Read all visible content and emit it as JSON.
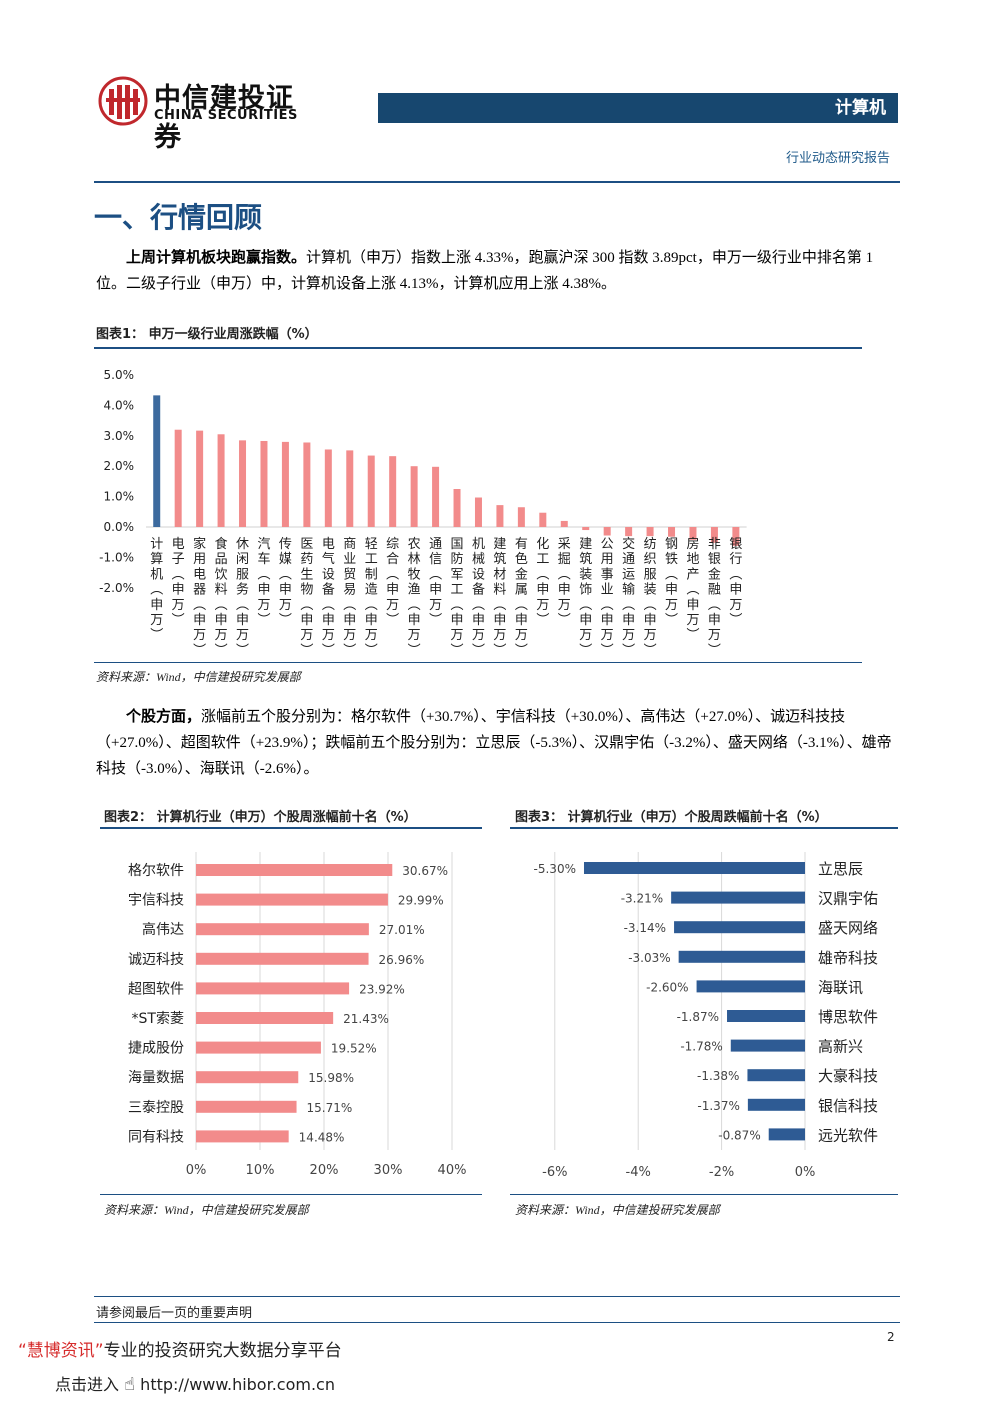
{
  "header": {
    "logo_cn": "中信建投证券",
    "logo_en": "CHINA SECURITIES",
    "sector": "计算机",
    "report_type": "行业动态研究报告"
  },
  "section": {
    "title": "一、行情回顾"
  },
  "para1": {
    "bold": "上周计算机板块跑赢指数。",
    "text": "计算机（申万）指数上涨 4.33%，跑赢沪深 300 指数 3.89pct，申万一级行业中排名第 1 位。二级子行业（申万）中，计算机设备上涨 4.13%，计算机应用上涨 4.38%。"
  },
  "para2": {
    "bold": "个股方面，",
    "text": "涨幅前五个股分别为：格尔软件（+30.7%）、宇信科技（+30.0%）、高伟达（+27.0%）、诚迈科技技（+27.0%）、超图软件（+23.9%）；跌幅前五个股分别为：立思辰（-5.3%）、汉鼎宇佑（-3.2%）、盛天网络（-3.1%）、雄帝科技（-3.0%）、海联讯（-2.6%）。"
  },
  "figure1": {
    "title": "图表1：  申万一级行业周涨跌幅（%）",
    "source": "资料来源：Wind，中信建投研究发展部"
  },
  "figure2": {
    "title": "图表2：  计算机行业（申万）个股周涨幅前十名（%）",
    "source": "资料来源：Wind，中信建投研究发展部"
  },
  "figure3": {
    "title": "图表3：  计算机行业（申万）个股周跌幅前十名（%）",
    "source": "资料来源：Wind，中信建投研究发展部"
  },
  "footer": {
    "note": "请参阅最后一页的重要声明",
    "page": "2",
    "ad_line1_red": "“慧博资讯”",
    "ad_line1": "专业的投资研究大数据分享平台",
    "ad_line2": "点击进入",
    "ad_url": "http://www.hibor.com.cn"
  },
  "colors": {
    "highlight": "#3c6a9e",
    "positive": "#f28b8b",
    "negative": "#2e5b94",
    "brand_bar": "#17476f",
    "brand_red": "#c0282d"
  },
  "icons": {
    "logo": "china-securities-logo-icon",
    "hand": "hand-pointer-icon"
  },
  "chart_data": [
    {
      "type": "bar",
      "title": "",
      "categories": [
        "计算机(申万)",
        "电子(申万)",
        "家用电器(申万)",
        "食品饮料(申万)",
        "休闲服务(申万)",
        "汽车(申万)",
        "传媒(申万)",
        "医药生物(申万)",
        "电气设备(申万)",
        "商业贸易(申万)",
        "轻工制造(申万)",
        "综合(申万)",
        "农林牧渔(申万)",
        "通信(申万)",
        "国防军工(申万)",
        "机械设备(申万)",
        "建筑材料(申万)",
        "有色金属(申万)",
        "化工(申万)",
        "采掘(申万)",
        "建筑装饰(申万)",
        "公用事业(申万)",
        "交通运输(申万)",
        "纺织服装(申万)",
        "钢铁(申万)",
        "房地产(申万)",
        "非银金融(申万)",
        "银行(申万)"
      ],
      "values": [
        4.33,
        3.2,
        3.17,
        3.05,
        2.85,
        2.83,
        2.8,
        2.78,
        2.55,
        2.52,
        2.35,
        2.33,
        2.0,
        1.98,
        1.25,
        0.97,
        0.72,
        0.65,
        0.47,
        0.2,
        -0.1,
        -0.28,
        -0.3,
        -0.3,
        -0.32,
        -0.42,
        -0.52,
        -0.62
      ],
      "yticks": [
        "5.0%",
        "4.0%",
        "3.0%",
        "2.0%",
        "1.0%",
        "0.0%",
        "-1.0%",
        "-2.0%"
      ],
      "ylim": [
        -2.0,
        5.0
      ],
      "grid": false
    },
    {
      "type": "bar",
      "orientation": "horizontal",
      "title": "",
      "categories": [
        "格尔软件",
        "宇信科技",
        "高伟达",
        "诚迈科技",
        "超图软件",
        "*ST索菱",
        "捷成股份",
        "海量数据",
        "三泰控股",
        "同有科技"
      ],
      "values": [
        30.67,
        29.99,
        27.01,
        26.96,
        23.92,
        21.43,
        19.52,
        15.98,
        15.71,
        14.48
      ],
      "labels": [
        "30.67%",
        "29.99%",
        "27.01%",
        "26.96%",
        "23.92%",
        "21.43%",
        "19.52%",
        "15.98%",
        "15.71%",
        "14.48%"
      ],
      "xticks": [
        "0%",
        "10%",
        "20%",
        "30%",
        "40%"
      ],
      "xlim": [
        0,
        40
      ],
      "grid": true
    },
    {
      "type": "bar",
      "orientation": "horizontal",
      "title": "",
      "categories": [
        "立思辰",
        "汉鼎宇佑",
        "盛天网络",
        "雄帝科技",
        "海联讯",
        "博思软件",
        "高新兴",
        "大豪科技",
        "银信科技",
        "远光软件"
      ],
      "values": [
        -5.3,
        -3.21,
        -3.14,
        -3.03,
        -2.6,
        -1.87,
        -1.78,
        -1.38,
        -1.37,
        -0.87
      ],
      "labels": [
        "-5.30%",
        "-3.21%",
        "-3.14%",
        "-3.03%",
        "-2.60%",
        "-1.87%",
        "-1.78%",
        "-1.38%",
        "-1.37%",
        "-0.87%"
      ],
      "xticks": [
        "-6%",
        "-4%",
        "-2%",
        "0%"
      ],
      "xlim": [
        -6,
        0
      ],
      "grid": true
    }
  ]
}
